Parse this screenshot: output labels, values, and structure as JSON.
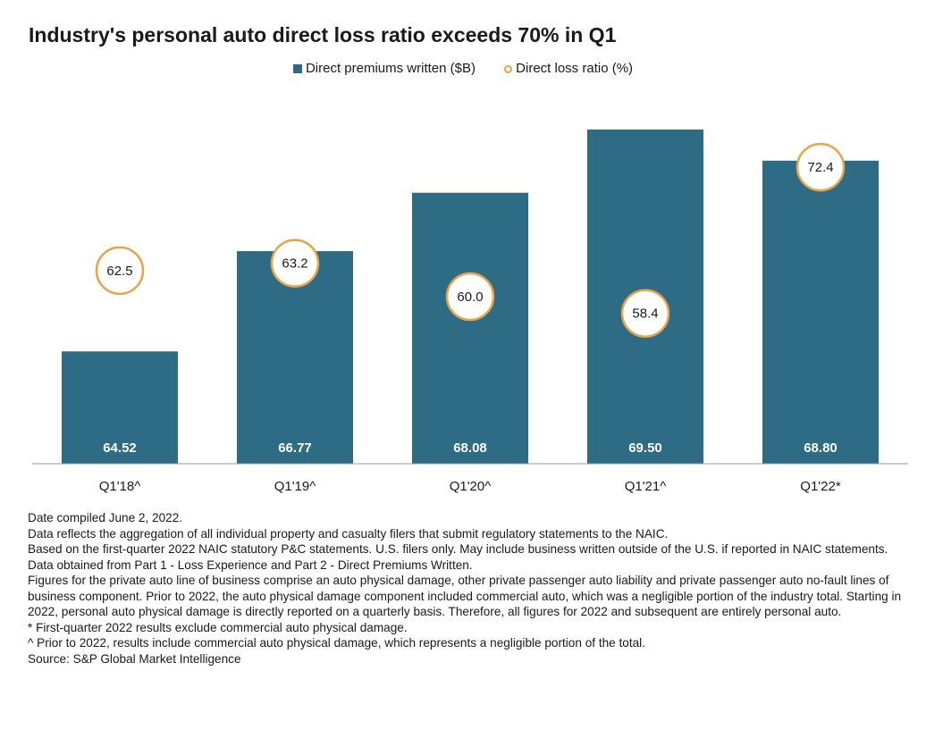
{
  "title": "Industry's personal auto direct loss ratio exceeds 70% in Q1",
  "legend": {
    "bars_label": "Direct premiums written ($B)",
    "ratio_label": "Direct loss ratio (%)"
  },
  "colors": {
    "bar": "#2e6b84",
    "circle_stroke": "#e8a44a",
    "axis": "#999999"
  },
  "chart_data": {
    "type": "bar",
    "categories": [
      "Q1'18^",
      "Q1'19^",
      "Q1'20^",
      "Q1'21^",
      "Q1'22*"
    ],
    "series": [
      {
        "name": "Direct premiums written ($B)",
        "type": "bar",
        "values": [
          64.52,
          66.77,
          68.08,
          69.5,
          68.8
        ]
      },
      {
        "name": "Direct loss ratio (%)",
        "type": "marker",
        "values": [
          62.5,
          63.2,
          60.0,
          58.4,
          72.4
        ]
      }
    ],
    "bar_value_labels": [
      "64.52",
      "66.77",
      "68.08",
      "69.50",
      "68.80"
    ],
    "ratio_labels": [
      "62.5",
      "63.2",
      "60.0",
      "58.4",
      "72.4"
    ],
    "ylim_bars": [
      62,
      70.2
    ],
    "ylim_ratio": [
      44,
      79
    ],
    "grid": false,
    "legend_position": "top"
  },
  "notes": [
    "Date compiled June 2, 2022.",
    "Data reflects the aggregation of all individual property and casualty filers that submit regulatory statements to the NAIC.",
    "Based on the first-quarter 2022 NAIC statutory P&C statements. U.S. filers only. May include business written outside of the U.S. if reported in NAIC statements.",
    "Data obtained from Part 1 - Loss Experience and Part 2 - Direct Premiums Written.",
    "Figures for the private auto line of business comprise an auto physical damage, other private passenger auto liability and private passenger auto no-fault lines of business component. Prior to 2022, the auto physical damage component included commercial auto, which was a negligible portion of the industry total. Starting in 2022, personal auto physical damage is directly reported on a quarterly basis. Therefore, all figures for 2022 and subsequent are entirely personal auto.",
    "* First-quarter 2022 results exclude commercial auto physical damage.",
    "^ Prior to 2022, results include commercial auto physical damage, which represents a negligible portion of the total.",
    "Source: S&P Global Market Intelligence"
  ]
}
